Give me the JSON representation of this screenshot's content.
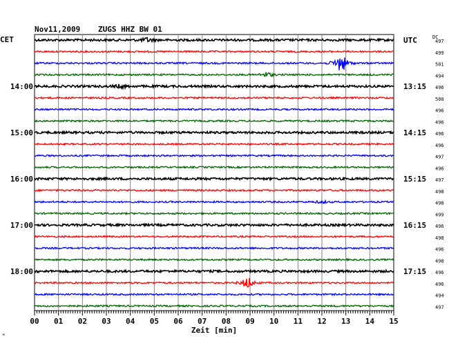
{
  "chart_data": {
    "type": "line",
    "header": {
      "date": "Nov11,2009",
      "station": "ZUGS HHZ BW 01"
    },
    "left_axis_label": "CET",
    "right_axis_label": "UTC",
    "dc_label": "DC",
    "xlabel": "Zeit [min]",
    "xlim": [
      0,
      15
    ],
    "x_ticks": [
      "00",
      "01",
      "02",
      "03",
      "04",
      "05",
      "06",
      "07",
      "08",
      "09",
      "10",
      "11",
      "12",
      "13",
      "14",
      "15"
    ],
    "hour_labels_left": [
      {
        "row": 4,
        "text": "14:00"
      },
      {
        "row": 8,
        "text": "15:00"
      },
      {
        "row": 12,
        "text": "16:00"
      },
      {
        "row": 16,
        "text": "17:00"
      },
      {
        "row": 20,
        "text": "18:00"
      }
    ],
    "hour_labels_right": [
      {
        "row": 0,
        "text": "UTC"
      },
      {
        "row": 4,
        "text": "13:15"
      },
      {
        "row": 8,
        "text": "14:15"
      },
      {
        "row": 12,
        "text": "15:15"
      },
      {
        "row": 16,
        "text": "16:15"
      },
      {
        "row": 20,
        "text": "17:15"
      }
    ],
    "trace_colors": [
      "#000000",
      "#ff0000",
      "#0000ff",
      "#006600"
    ],
    "dc_values": [
      "497",
      "499",
      "501",
      "494",
      "496",
      "500",
      "496",
      "496",
      "496",
      "496",
      "497",
      "496",
      "497",
      "498",
      "498",
      "499",
      "496",
      "498",
      "496",
      "498",
      "496",
      "496",
      "494",
      "497"
    ],
    "events": [
      {
        "row": 0,
        "minute": 4.7,
        "amplitude": 3
      },
      {
        "row": 2,
        "minute": 12.8,
        "amplitude": 18
      },
      {
        "row": 3,
        "minute": 9.7,
        "amplitude": 4
      },
      {
        "row": 4,
        "minute": 3.6,
        "amplitude": 2.5
      },
      {
        "row": 14,
        "minute": 12.0,
        "amplitude": 2
      },
      {
        "row": 21,
        "minute": 8.9,
        "amplitude": 10
      }
    ],
    "footnote": "*"
  }
}
